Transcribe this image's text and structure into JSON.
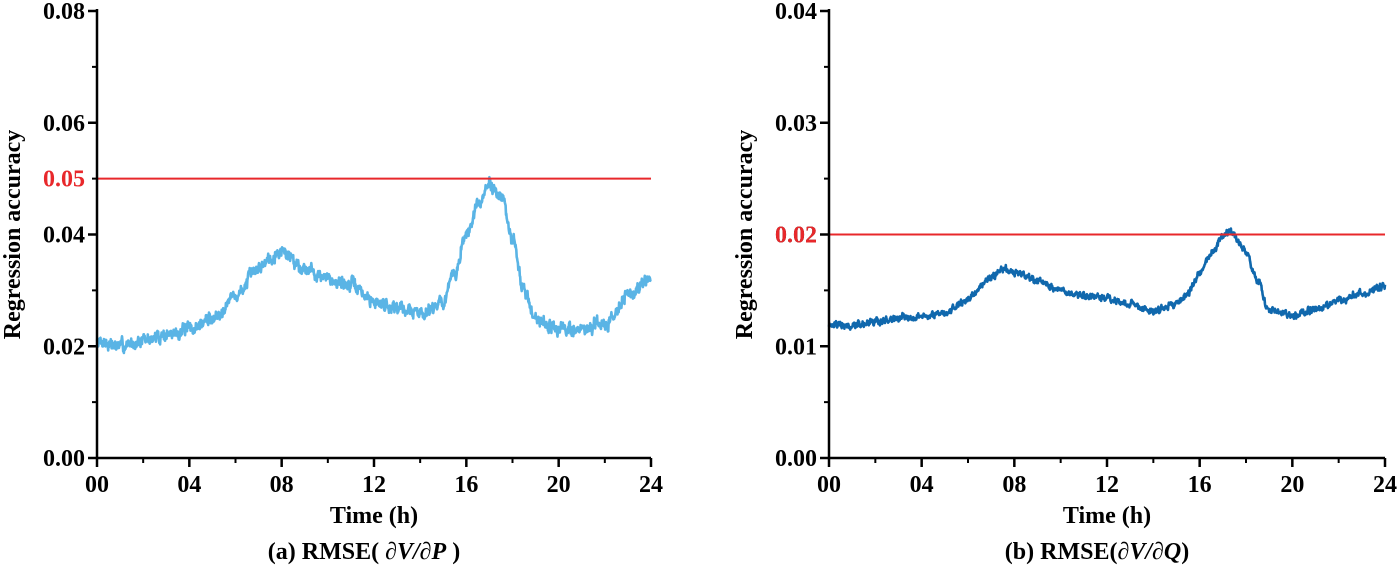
{
  "chart_data": [
    {
      "type": "line",
      "caption": {
        "prefix": "(a) RMSE( ",
        "math": "∂V/∂P",
        "suffix": " )"
      },
      "xlabel": "Time (h)",
      "ylabel": "Regression accuracy",
      "xlim": [
        0,
        24
      ],
      "ylim": [
        0,
        0.08
      ],
      "xticks": [
        0,
        4,
        8,
        12,
        16,
        20,
        24
      ],
      "xtick_labels": [
        "00",
        "04",
        "08",
        "12",
        "16",
        "20",
        "24"
      ],
      "yticks": [
        0,
        0.02,
        0.04,
        0.06,
        0.08
      ],
      "ytick_labels": [
        "0.00",
        "0.02",
        "0.04",
        "0.06",
        "0.08"
      ],
      "threshold": {
        "value": 0.05,
        "label": "0.05",
        "color": "#e8282b"
      },
      "series_color": "#5ab4e5",
      "noise": 0.0018,
      "trend": [
        [
          0,
          0.021
        ],
        [
          1,
          0.02
        ],
        [
          2,
          0.021
        ],
        [
          3,
          0.022
        ],
        [
          4,
          0.023
        ],
        [
          5,
          0.025
        ],
        [
          6,
          0.029
        ],
        [
          7,
          0.034
        ],
        [
          7.5,
          0.036
        ],
        [
          8,
          0.037
        ],
        [
          9,
          0.034
        ],
        [
          10,
          0.032
        ],
        [
          11,
          0.031
        ],
        [
          12,
          0.028
        ],
        [
          13,
          0.027
        ],
        [
          14,
          0.026
        ],
        [
          15,
          0.028
        ],
        [
          15.5,
          0.033
        ],
        [
          16,
          0.04
        ],
        [
          16.5,
          0.045
        ],
        [
          17,
          0.049
        ],
        [
          17.5,
          0.047
        ],
        [
          18,
          0.039
        ],
        [
          18.5,
          0.03
        ],
        [
          19,
          0.025
        ],
        [
          20,
          0.023
        ],
        [
          21,
          0.023
        ],
        [
          22,
          0.024
        ],
        [
          23,
          0.029
        ],
        [
          24,
          0.032
        ]
      ]
    },
    {
      "type": "line",
      "caption": {
        "prefix": "(b) RMSE(",
        "math": "∂V/∂Q",
        "suffix": ")"
      },
      "xlabel": "Time (h)",
      "ylabel": "Regression accuracy",
      "xlim": [
        0,
        24
      ],
      "ylim": [
        0,
        0.04
      ],
      "xticks": [
        0,
        4,
        8,
        12,
        16,
        20,
        24
      ],
      "xtick_labels": [
        "00",
        "04",
        "08",
        "12",
        "16",
        "20",
        "24"
      ],
      "yticks": [
        0,
        0.01,
        0.02,
        0.03,
        0.04
      ],
      "ytick_labels": [
        "0.00",
        "0.01",
        "0.02",
        "0.03",
        "0.04"
      ],
      "threshold": {
        "value": 0.02,
        "label": "0.02",
        "color": "#e8282b"
      },
      "series_color": "#1068ad",
      "noise": 0.0005,
      "trend": [
        [
          0,
          0.012
        ],
        [
          1,
          0.0118
        ],
        [
          2,
          0.0122
        ],
        [
          3,
          0.0125
        ],
        [
          4,
          0.0127
        ],
        [
          5,
          0.013
        ],
        [
          6,
          0.0142
        ],
        [
          7,
          0.0162
        ],
        [
          7.5,
          0.0168
        ],
        [
          8,
          0.0166
        ],
        [
          9,
          0.0158
        ],
        [
          10,
          0.015
        ],
        [
          11,
          0.0145
        ],
        [
          12,
          0.0142
        ],
        [
          13,
          0.0138
        ],
        [
          14,
          0.0132
        ],
        [
          15,
          0.0138
        ],
        [
          15.5,
          0.0148
        ],
        [
          16,
          0.0165
        ],
        [
          16.5,
          0.0183
        ],
        [
          17,
          0.0198
        ],
        [
          17.3,
          0.0202
        ],
        [
          18,
          0.0185
        ],
        [
          18.5,
          0.0158
        ],
        [
          19,
          0.0132
        ],
        [
          20,
          0.0127
        ],
        [
          21,
          0.0133
        ],
        [
          22,
          0.0141
        ],
        [
          23,
          0.0147
        ],
        [
          24,
          0.0154
        ]
      ]
    }
  ]
}
